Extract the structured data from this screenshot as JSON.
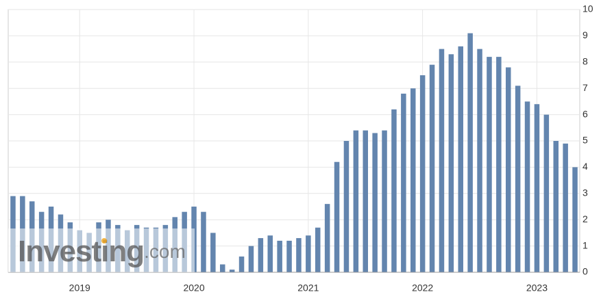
{
  "chart_data": {
    "type": "bar",
    "categories": [
      null,
      null,
      null,
      null,
      null,
      null,
      null,
      "2019",
      null,
      null,
      null,
      null,
      null,
      null,
      null,
      null,
      null,
      null,
      null,
      "2020",
      null,
      null,
      null,
      null,
      null,
      null,
      null,
      null,
      null,
      null,
      null,
      "2021",
      null,
      null,
      null,
      null,
      null,
      null,
      null,
      null,
      null,
      null,
      null,
      "2022",
      null,
      null,
      null,
      null,
      null,
      null,
      null,
      null,
      null,
      null,
      null,
      "2023",
      null,
      null,
      null,
      null
    ],
    "values": [
      2.9,
      2.9,
      2.7,
      2.3,
      2.5,
      2.2,
      1.9,
      1.6,
      1.5,
      1.9,
      2.0,
      1.8,
      1.6,
      1.8,
      1.7,
      1.7,
      1.8,
      2.1,
      2.3,
      2.5,
      2.3,
      1.5,
      0.3,
      0.1,
      0.6,
      1.0,
      1.3,
      1.4,
      1.2,
      1.2,
      1.3,
      1.4,
      1.7,
      2.6,
      4.2,
      5.0,
      5.4,
      5.4,
      5.3,
      5.4,
      6.2,
      6.8,
      7.0,
      7.5,
      7.9,
      8.5,
      8.3,
      8.6,
      9.1,
      8.5,
      8.2,
      8.2,
      7.8,
      7.1,
      6.5,
      6.4,
      6.0,
      5.0,
      4.9,
      4.0
    ],
    "color": "#6385ae",
    "ylim": [
      0,
      10
    ],
    "yticks": [
      0,
      1,
      2,
      3,
      4,
      5,
      6,
      7,
      8,
      9,
      10
    ],
    "grid": true,
    "watermark": [
      "Investing",
      ".com"
    ]
  }
}
